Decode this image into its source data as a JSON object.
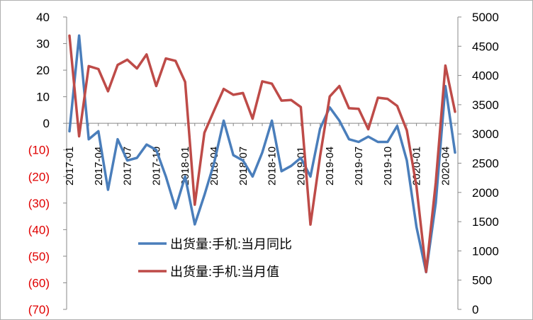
{
  "chart_data": {
    "type": "line",
    "title": "",
    "xlabel": "",
    "ylabel": "",
    "x": [
      "2017-01",
      "2017-02",
      "2017-03",
      "2017-04",
      "2017-05",
      "2017-06",
      "2017-07",
      "2017-08",
      "2017-09",
      "2017-10",
      "2017-11",
      "2017-12",
      "2018-01",
      "2018-02",
      "2018-03",
      "2018-04",
      "2018-05",
      "2018-06",
      "2018-07",
      "2018-08",
      "2018-09",
      "2018-10",
      "2018-11",
      "2018-12",
      "2019-01",
      "2019-02",
      "2019-03",
      "2019-04",
      "2019-05",
      "2019-06",
      "2019-07",
      "2019-08",
      "2019-09",
      "2019-10",
      "2019-11",
      "2019-12",
      "2020-01",
      "2020-02",
      "2020-03",
      "2020-04",
      "2020-05"
    ],
    "x_tick_labels": [
      "2017-01",
      "2017-04",
      "2017-07",
      "2017-10",
      "2018-01",
      "2018-04",
      "2018-07",
      "2018-10",
      "2019-01",
      "2019-04",
      "2019-07",
      "2019-10",
      "2020-01",
      "2020-04"
    ],
    "left_axis": {
      "ylim": [
        -70,
        40
      ],
      "ticks": [
        40,
        30,
        20,
        10,
        0,
        -10,
        -20,
        -30,
        -40,
        -50,
        -60,
        -70
      ],
      "tick_labels": [
        "40",
        "30",
        "20",
        "10",
        "0",
        "(10)",
        "(20)",
        "(30)",
        "(40)",
        "(50)",
        "(60)",
        "(70)"
      ]
    },
    "right_axis": {
      "ylim": [
        0,
        5000
      ],
      "ticks": [
        5000,
        4500,
        4000,
        3500,
        3000,
        2500,
        2000,
        1500,
        1000,
        500,
        0
      ],
      "tick_labels": [
        "5000",
        "4500",
        "4000",
        "3500",
        "3000",
        "2500",
        "2000",
        "1500",
        "1000",
        "500",
        "0"
      ]
    },
    "series": [
      {
        "name": "出货量:手机:当月同比",
        "axis": "left",
        "color": "#4a7ebb",
        "values": [
          -3,
          33,
          -6,
          -3,
          -25,
          -6,
          -14,
          -13,
          -8,
          -10,
          -20,
          -32,
          -20,
          -38,
          -27,
          -15,
          1,
          -12,
          -14,
          -20,
          -11,
          1,
          -18,
          -16,
          -13,
          -20,
          -2,
          6,
          1,
          -6,
          -7,
          -5,
          -7,
          -7,
          -1,
          -14,
          -39,
          -56,
          -30,
          14,
          -11
        ]
      },
      {
        "name": "出货量:手机:当月值",
        "axis": "right",
        "color": "#be4b48",
        "values": [
          4680,
          2960,
          4160,
          4110,
          3730,
          4180,
          4270,
          4120,
          4360,
          3820,
          4290,
          4250,
          3890,
          1790,
          3020,
          3400,
          3770,
          3670,
          3700,
          3260,
          3900,
          3860,
          3570,
          3580,
          3460,
          1450,
          2620,
          3640,
          3820,
          3440,
          3430,
          3080,
          3620,
          3600,
          3480,
          3060,
          2100,
          640,
          2170,
          4170,
          3380
        ]
      }
    ],
    "legend": "center-left",
    "grid": false
  }
}
